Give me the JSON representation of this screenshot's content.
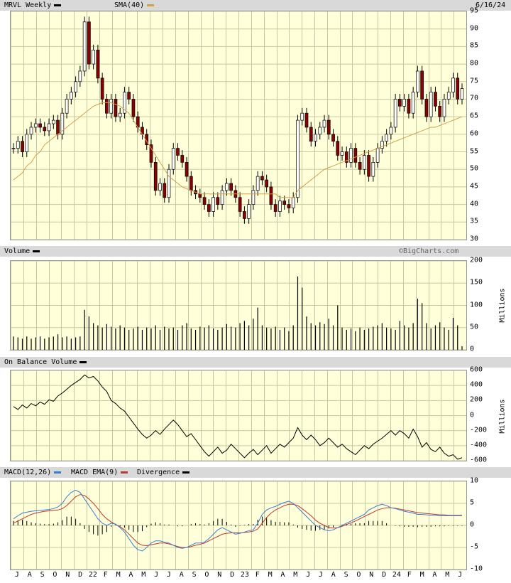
{
  "header": {
    "ticker_label": "MRVL Weekly",
    "ticker_swatch": "#000000",
    "sma_label": "SMA(40)",
    "sma_swatch": "#d4a04a",
    "date": "6/16/24"
  },
  "volume_header": {
    "label": "Volume",
    "watermark": "©BigCharts.com"
  },
  "obv_header": {
    "label": "On Balance Volume"
  },
  "macd_header": {
    "macd_label": "MACD(12,26)",
    "macd_color": "#3a7bd5",
    "ema_label": "MACD EMA(9)",
    "ema_color": "#c0392b",
    "div_label": "Divergence",
    "div_color": "#000000"
  },
  "units": {
    "volume": "Millions",
    "obv": "Millions"
  },
  "x_labels": [
    "J",
    "A",
    "S",
    "O",
    "N",
    "D",
    "22",
    "F",
    "M",
    "A",
    "M",
    "J",
    "J",
    "A",
    "S",
    "O",
    "N",
    "D",
    "23",
    "F",
    "M",
    "A",
    "M",
    "J",
    "J",
    "A",
    "S",
    "O",
    "N",
    "D",
    "24",
    "F",
    "M",
    "A",
    "M",
    "J"
  ],
  "chart_data": [
    {
      "type": "candlestick",
      "title": "MRVL Weekly",
      "series_label": "SMA(40)",
      "ylim": [
        30,
        95
      ],
      "yticks": [
        30,
        35,
        40,
        45,
        50,
        55,
        60,
        65,
        70,
        75,
        80,
        85,
        90,
        95
      ],
      "close": [
        56,
        58,
        55,
        60,
        62,
        63,
        62,
        61,
        63,
        64,
        60,
        66,
        70,
        72,
        75,
        78,
        92,
        80,
        84,
        76,
        70,
        66,
        70,
        65,
        66,
        72,
        70,
        65,
        62,
        60,
        57,
        52,
        44,
        46,
        42,
        50,
        56,
        54,
        52,
        48,
        44,
        43,
        42,
        40,
        38,
        42,
        40,
        44,
        46,
        44,
        42,
        38,
        36,
        40,
        44,
        48,
        47,
        45,
        40,
        38,
        41,
        40,
        39,
        42,
        64,
        66,
        62,
        58,
        60,
        62,
        64,
        60,
        58,
        54,
        55,
        52,
        56,
        52,
        50,
        54,
        48,
        52,
        56,
        58,
        60,
        62,
        70,
        68,
        70,
        66,
        72,
        78,
        70,
        65,
        72,
        68,
        65,
        70,
        72,
        76,
        70,
        73
      ],
      "sma40": [
        47,
        48,
        49,
        51,
        52,
        54,
        55,
        57,
        58,
        59,
        60,
        61,
        62,
        63,
        64,
        65,
        66,
        67,
        68,
        68.5,
        69,
        69,
        69,
        68.5,
        68,
        67,
        66,
        64,
        62,
        60,
        58,
        56,
        54,
        52,
        50,
        48,
        47,
        46,
        45,
        44.5,
        44,
        43.5,
        43,
        43,
        43,
        43,
        43,
        43,
        43,
        43,
        43,
        43,
        43,
        43,
        43,
        43,
        43,
        43,
        43,
        43,
        42,
        42,
        42,
        42,
        44,
        45,
        46,
        47,
        48,
        49,
        50,
        50.5,
        51,
        51.5,
        52,
        52.5,
        53,
        53.5,
        54,
        54.5,
        55,
        55.5,
        56,
        56.5,
        57,
        57.5,
        58,
        58.5,
        59,
        59.5,
        60,
        60.5,
        61,
        61.5,
        62,
        62,
        62.5,
        63,
        63.5,
        64,
        64.5,
        65
      ]
    },
    {
      "type": "bar",
      "title": "Volume",
      "ylabel": "Millions",
      "ylim": [
        0,
        200
      ],
      "yticks": [
        0,
        50,
        100,
        150,
        200
      ],
      "values": [
        30,
        28,
        25,
        30,
        25,
        28,
        30,
        25,
        28,
        30,
        35,
        28,
        30,
        25,
        28,
        30,
        90,
        75,
        60,
        55,
        50,
        58,
        52,
        48,
        55,
        50,
        45,
        48,
        52,
        45,
        50,
        48,
        55,
        45,
        52,
        48,
        50,
        45,
        55,
        60,
        48,
        45,
        52,
        50,
        55,
        48,
        45,
        50,
        58,
        52,
        50,
        60,
        65,
        55,
        70,
        95,
        55,
        50,
        48,
        52,
        45,
        50,
        42,
        55,
        165,
        140,
        75,
        60,
        55,
        62,
        58,
        70,
        55,
        100,
        50,
        45,
        48,
        42,
        50,
        45,
        48,
        52,
        55,
        60,
        50,
        48,
        45,
        65,
        55,
        50,
        60,
        115,
        105,
        60,
        48,
        55,
        62,
        50,
        45,
        72,
        55,
        8
      ]
    },
    {
      "type": "line",
      "title": "On Balance Volume",
      "ylabel": "Millions",
      "ylim": [
        -600,
        600
      ],
      "yticks": [
        -600,
        -400,
        -200,
        0,
        200,
        400,
        600
      ],
      "values": [
        120,
        80,
        140,
        100,
        160,
        130,
        180,
        150,
        210,
        190,
        260,
        300,
        350,
        400,
        440,
        480,
        540,
        500,
        520,
        460,
        380,
        320,
        200,
        160,
        100,
        60,
        -20,
        -100,
        -180,
        -250,
        -300,
        -260,
        -200,
        -250,
        -180,
        -120,
        -60,
        -120,
        -200,
        -280,
        -240,
        -320,
        -400,
        -480,
        -540,
        -480,
        -420,
        -500,
        -460,
        -380,
        -440,
        -500,
        -560,
        -500,
        -450,
        -520,
        -460,
        -400,
        -500,
        -440,
        -380,
        -420,
        -360,
        -300,
        -160,
        -260,
        -320,
        -260,
        -320,
        -400,
        -360,
        -300,
        -360,
        -420,
        -380,
        -440,
        -480,
        -520,
        -460,
        -400,
        -440,
        -380,
        -340,
        -300,
        -250,
        -200,
        -260,
        -200,
        -240,
        -300,
        -180,
        -280,
        -420,
        -360,
        -450,
        -480,
        -420,
        -500,
        -540,
        -520,
        -580,
        -560
      ]
    },
    {
      "type": "line",
      "title": "MACD(12,26)",
      "ylim": [
        -10,
        10
      ],
      "yticks": [
        -10,
        -5,
        0,
        5,
        10
      ],
      "series": [
        {
          "name": "MACD(12,26)",
          "values": [
            1.5,
            2.2,
            2.8,
            3.0,
            3.2,
            3.3,
            3.4,
            3.5,
            3.6,
            3.8,
            4.2,
            5.0,
            6.5,
            7.5,
            8.0,
            7.5,
            6.0,
            4.5,
            3.0,
            1.5,
            0.5,
            0.0,
            0.5,
            0.3,
            -0.5,
            -1.5,
            -3.0,
            -4.5,
            -5.5,
            -5.8,
            -5.0,
            -4.0,
            -3.5,
            -3.5,
            -3.8,
            -4.0,
            -4.5,
            -5.0,
            -5.2,
            -5.0,
            -4.5,
            -4.0,
            -4.0,
            -3.8,
            -3.0,
            -2.0,
            -1.0,
            -0.5,
            -1.0,
            -1.5,
            -2.0,
            -1.8,
            -1.5,
            -1.2,
            -1.0,
            0.5,
            2.5,
            3.5,
            4.0,
            4.3,
            4.8,
            5.2,
            5.5,
            5.0,
            4.0,
            3.0,
            2.0,
            1.0,
            0.0,
            -0.5,
            -1.0,
            -1.2,
            -1.0,
            -0.5,
            0.0,
            0.5,
            1.0,
            1.5,
            2.0,
            2.5,
            3.5,
            4.0,
            4.5,
            4.8,
            4.5,
            4.0,
            3.8,
            3.5,
            3.2,
            3.0,
            2.8,
            2.5,
            2.5,
            2.4,
            2.3,
            2.3,
            2.2,
            2.2,
            2.2,
            2.2,
            2.2,
            2.2
          ]
        },
        {
          "name": "MACD EMA(9)",
          "values": [
            0.5,
            1.0,
            1.5,
            2.0,
            2.5,
            2.8,
            3.0,
            3.2,
            3.3,
            3.4,
            3.5,
            3.8,
            4.5,
            5.5,
            6.5,
            7.0,
            6.8,
            6.0,
            5.0,
            3.8,
            2.5,
            1.5,
            0.8,
            0.2,
            -0.3,
            -1.0,
            -2.0,
            -3.0,
            -4.0,
            -4.5,
            -4.6,
            -4.4,
            -4.2,
            -4.0,
            -4.0,
            -4.2,
            -4.5,
            -4.8,
            -5.0,
            -5.0,
            -4.8,
            -4.5,
            -4.3,
            -4.0,
            -3.5,
            -3.0,
            -2.5,
            -2.0,
            -1.8,
            -1.7,
            -1.7,
            -1.7,
            -1.6,
            -1.5,
            -1.3,
            -0.8,
            0.5,
            1.8,
            2.8,
            3.5,
            4.0,
            4.5,
            4.8,
            4.8,
            4.5,
            3.8,
            3.0,
            2.2,
            1.2,
            0.5,
            0.0,
            -0.5,
            -0.6,
            -0.5,
            -0.2,
            0.2,
            0.6,
            1.0,
            1.5,
            2.0,
            2.5,
            3.0,
            3.5,
            3.8,
            4.0,
            4.0,
            3.9,
            3.7,
            3.5,
            3.3,
            3.1,
            2.9,
            2.8,
            2.7,
            2.6,
            2.5,
            2.4,
            2.4,
            2.3,
            2.3,
            2.3,
            2.3
          ]
        },
        {
          "name": "Divergence",
          "values": [
            1.0,
            1.2,
            1.3,
            1.0,
            0.7,
            0.5,
            0.4,
            0.3,
            0.3,
            0.4,
            0.7,
            1.2,
            2.0,
            2.0,
            1.5,
            0.5,
            -0.8,
            -1.5,
            -2.0,
            -2.3,
            -2.0,
            -1.5,
            -0.3,
            0.1,
            -0.2,
            -0.5,
            -1.0,
            -1.5,
            -1.5,
            -1.3,
            -0.4,
            0.4,
            0.7,
            0.5,
            0.2,
            0.2,
            0.0,
            -0.2,
            -0.2,
            0.0,
            0.3,
            0.5,
            0.3,
            0.2,
            0.5,
            1.0,
            1.5,
            1.5,
            0.8,
            0.2,
            -0.3,
            -0.1,
            0.1,
            0.3,
            0.3,
            1.3,
            2.0,
            1.7,
            1.2,
            0.8,
            0.8,
            0.7,
            0.7,
            0.2,
            -0.5,
            -0.8,
            -1.0,
            -1.2,
            -1.2,
            -1.0,
            -1.0,
            -0.7,
            -0.4,
            0.0,
            0.2,
            0.3,
            0.4,
            0.5,
            0.5,
            0.5,
            1.0,
            1.0,
            1.0,
            1.0,
            0.5,
            0.0,
            -0.1,
            -0.2,
            -0.3,
            -0.3,
            -0.3,
            -0.4,
            -0.3,
            -0.3,
            -0.3,
            -0.2,
            -0.2,
            -0.2,
            -0.1,
            -0.1,
            -0.1,
            -0.1
          ]
        }
      ]
    }
  ]
}
